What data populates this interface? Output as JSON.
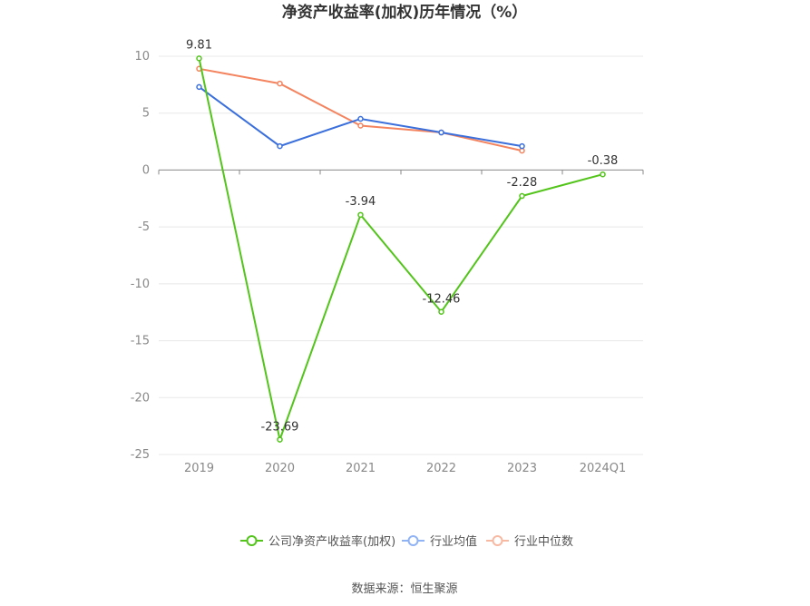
{
  "chart_data": {
    "type": "line",
    "title": "净资产收益率(加权)历年情况（%）",
    "categories": [
      "2019",
      "2020",
      "2021",
      "2022",
      "2023",
      "2024Q1"
    ],
    "ylim": [
      -25,
      10
    ],
    "yticks": [
      10,
      5,
      0,
      -5,
      -10,
      -15,
      -20,
      -25
    ],
    "grid": true,
    "legend_position": "bottom",
    "series": [
      {
        "name": "公司净资产收益率(加权)",
        "color": "#52c41a",
        "values": [
          9.81,
          -23.69,
          -3.94,
          -12.46,
          -2.28,
          -0.38
        ],
        "labels": [
          "9.81",
          "-23.69",
          "-3.94",
          "-12.46",
          "-2.28",
          "-0.38"
        ]
      },
      {
        "name": "行业均值",
        "color": "#3a6fdc",
        "values": [
          7.3,
          2.1,
          4.5,
          3.3,
          2.1,
          null
        ]
      },
      {
        "name": "行业中位数",
        "color": "#f4845f",
        "values": [
          8.9,
          7.6,
          3.9,
          3.3,
          1.7,
          null
        ]
      }
    ],
    "legend_colors": [
      "#52c41a",
      "#8fb3f5",
      "#f7b9a2"
    ]
  },
  "source": "数据来源：恒生聚源"
}
